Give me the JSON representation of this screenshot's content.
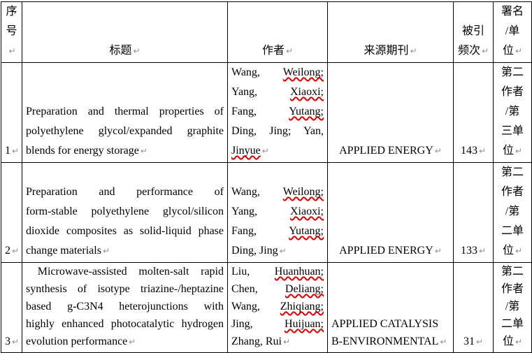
{
  "marks": {
    "paragraph_mark": "↵"
  },
  "colors": {
    "text": "#000000",
    "border": "#000000",
    "background": "#ffffff",
    "spellcheck_underline": "#e00000",
    "paragraph_mark_color": "#8f8f8f"
  },
  "table": {
    "header": {
      "num": {
        "lines": [
          "序",
          "号"
        ]
      },
      "title": {
        "lines": [
          "标题"
        ]
      },
      "authors": {
        "lines": [
          "作者"
        ]
      },
      "journal": {
        "lines": [
          "来源期刊"
        ]
      },
      "cited": {
        "lines": [
          "被引",
          "频次"
        ]
      },
      "role": {
        "lines": [
          "署名",
          "/单",
          "位"
        ]
      }
    },
    "rows": [
      {
        "num": "1",
        "title_lines": [
          "Preparation and thermal properties of",
          "polyethylene glycol/expanded graphite",
          "blends for energy storage"
        ],
        "author_lines": [
          [
            {
              "t": "Wang,"
            },
            {
              "t": "Weilong;",
              "sq": true
            }
          ],
          [
            {
              "t": "Yang,"
            },
            {
              "t": "Xiaoxi;",
              "sq": true
            }
          ],
          [
            {
              "t": "Fang,"
            },
            {
              "t": "Yutang;",
              "sq": true
            }
          ],
          [
            {
              "t": "Ding, Jing; Yan,"
            }
          ],
          [
            {
              "t": "Jinyue",
              "sq": true
            }
          ]
        ],
        "journal_lines": [
          "APPLIED ENERGY"
        ],
        "journal_align": "center",
        "cited": "143",
        "role_lines": [
          "第二",
          "作者",
          "/第",
          "三单",
          "位"
        ]
      },
      {
        "num": "2",
        "title_lines": [
          "Preparation and performance of",
          "form-stable polyethylene glycol/silicon",
          "dioxide composites as solid-liquid phase",
          "change materials"
        ],
        "author_lines": [
          [
            {
              "t": "Wang,"
            },
            {
              "t": "Weilong;",
              "sq": true
            }
          ],
          [
            {
              "t": "Yang,"
            },
            {
              "t": "Xiaoxi;",
              "sq": true
            }
          ],
          [
            {
              "t": "Fang,"
            },
            {
              "t": "Yutang;",
              "sq": true
            }
          ],
          [
            {
              "t": "Ding, Jing"
            }
          ]
        ],
        "journal_lines": [
          "APPLIED ENERGY"
        ],
        "journal_align": "center",
        "cited": "133",
        "role_lines": [
          "第二",
          "作者",
          "/第",
          "二单",
          "位"
        ]
      },
      {
        "num": "3",
        "title_lines": [
          " Microwave-assisted molten-salt rapid",
          "synthesis of isotype triazine-/heptazine",
          "based g-C3N4 heterojunctions with",
          "highly enhanced photocatalytic hydrogen",
          "evolution performance"
        ],
        "author_lines": [
          [
            {
              "t": "Liu,"
            },
            {
              "t": "Huanhuan;",
              "sq": true
            }
          ],
          [
            {
              "t": "Chen,"
            },
            {
              "t": "Deliang;",
              "sq": true
            }
          ],
          [
            {
              "t": "Wang,"
            },
            {
              "t": "Zhiqiang;",
              "sq": true
            }
          ],
          [
            {
              "t": "Jing,"
            },
            {
              "t": "Huijuan;",
              "sq": true
            }
          ],
          [
            {
              "t": "Zhang, Rui"
            }
          ]
        ],
        "journal_lines": [
          "APPLIED CATALYSIS",
          "B-ENVIRONMENTAL"
        ],
        "journal_align": "left",
        "cited": "31",
        "role_lines": [
          "第二",
          "作者",
          "/第",
          "二单",
          "位"
        ]
      }
    ]
  }
}
